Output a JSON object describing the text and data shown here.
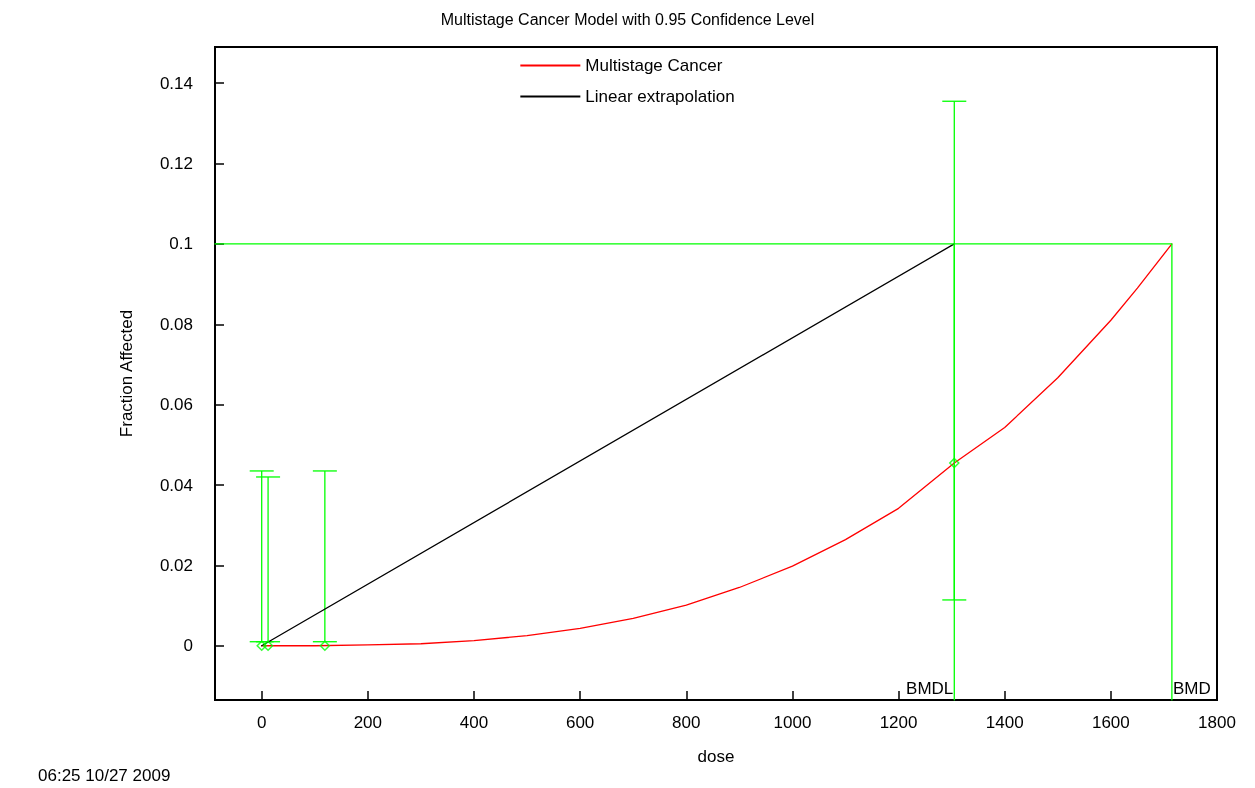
{
  "chart_data": {
    "type": "line",
    "title": "Multistage Cancer Model with 0.95 Confidence Level",
    "xlabel": "dose",
    "ylabel": "Fraction Affected",
    "xlim": [
      -88,
      1800
    ],
    "xticks": [
      0,
      200,
      400,
      600,
      800,
      1000,
      1200,
      1400,
      1600,
      1800
    ],
    "ylim": [
      -0.0135,
      0.149
    ],
    "yticks": [
      0,
      0.02,
      0.04,
      0.06,
      0.08,
      0.1,
      0.12,
      0.14
    ],
    "grid": false,
    "legend": "top",
    "series": [
      {
        "name": "Multistage Cancer",
        "type": "line",
        "color": "#ff0000",
        "marker": "none",
        "x": [
          0,
          100,
          200,
          300,
          400,
          500,
          600,
          700,
          800,
          900,
          1000,
          1100,
          1200,
          1305,
          1400,
          1500,
          1600,
          1650,
          1715
        ],
        "values": [
          0,
          0,
          0.0002,
          0.0005,
          0.0013,
          0.0025,
          0.0043,
          0.0068,
          0.0101,
          0.0145,
          0.0198,
          0.0264,
          0.0342,
          0.0455,
          0.0543,
          0.0667,
          0.081,
          0.089,
          0.1
        ]
      },
      {
        "name": "Linear extrapolation",
        "type": "line",
        "color": "#000000",
        "marker": "none",
        "x": [
          0,
          1305
        ],
        "values": [
          0,
          0.1
        ]
      },
      {
        "type": "scatter",
        "color": "#00ff00",
        "marker": "diamond",
        "x": [
          0,
          12,
          119,
          1305
        ],
        "values": [
          0,
          0,
          0,
          0.0455
        ],
        "errors": [
          [
            0.001,
            0.0435
          ],
          [
            0.001,
            0.042
          ],
          [
            0.001,
            0.0435
          ],
          [
            0.0114,
            0.1355
          ]
        ]
      },
      {
        "type": "line",
        "color": "#00ff00",
        "marker": "none",
        "x": [
          -88,
          1715,
          1715
        ],
        "values": [
          0.1,
          0.1,
          -0.0135
        ]
      },
      {
        "type": "line",
        "color": "#00ff00",
        "marker": "none",
        "x": [
          1305,
          1305
        ],
        "values": [
          -0.0135,
          0.1
        ]
      }
    ],
    "annotations": [
      {
        "text": "BMDL",
        "x": 1305,
        "y": -0.0135
      },
      {
        "text": "BMD",
        "x": 1715,
        "y": -0.0135
      },
      "06:25 10/27 2009"
    ]
  }
}
